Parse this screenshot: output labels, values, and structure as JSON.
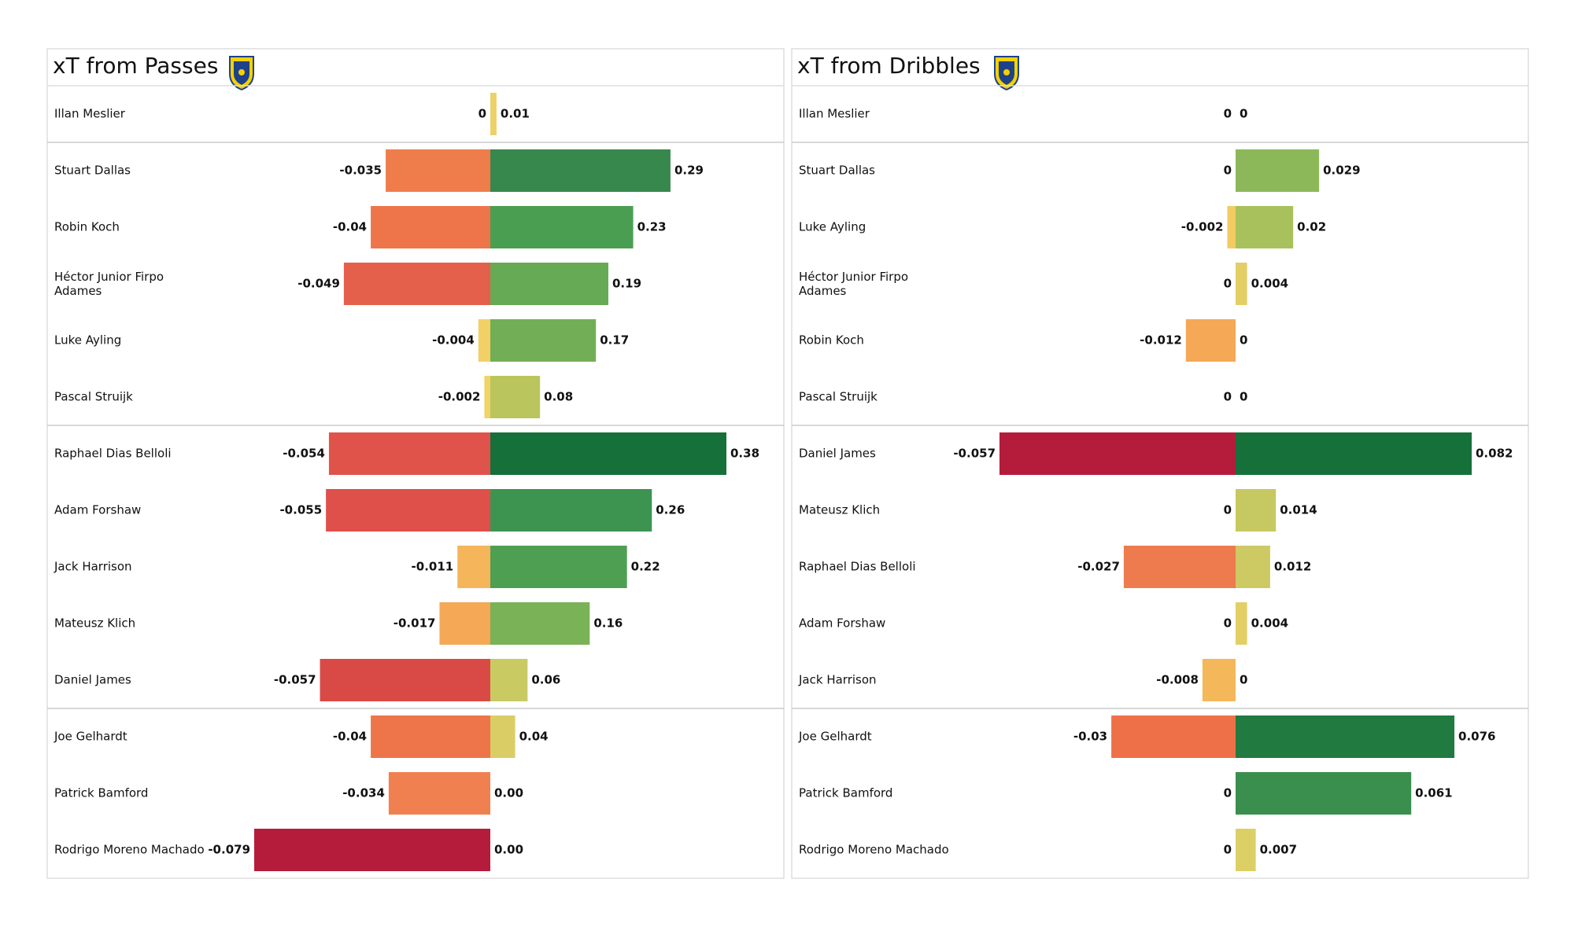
{
  "chart_data": [
    {
      "type": "diverging-bar",
      "title": "xT from Passes",
      "categories": [
        "Illan Meslier",
        "Stuart Dallas",
        "Robin Koch",
        "Héctor Junior Firpo Adames",
        "Luke Ayling",
        "Pascal Struijk",
        "Raphael Dias Belloli",
        "Adam Forshaw",
        "Jack Harrison",
        "Mateusz Klich",
        "Daniel James",
        "Joe Gelhardt",
        "Patrick Bamford",
        "Rodrigo Moreno Machado"
      ],
      "series": [
        {
          "values": [
            0,
            -0.035,
            -0.04,
            -0.049,
            -0.004,
            -0.002,
            -0.054,
            -0.055,
            -0.011,
            -0.017,
            -0.057,
            -0.04,
            -0.034,
            -0.079
          ],
          "xlim": [
            -0.079,
            0
          ],
          "colors": [
            "#e9d068",
            "#ef7d4b",
            "#ee754a",
            "#e5604a",
            "#f2d065",
            "#f0d468",
            "#e0534a",
            "#de5049",
            "#f5b55a",
            "#f5a855",
            "#d94a47",
            "#ee754a",
            "#f08050",
            "#b51c3c"
          ]
        },
        {
          "values": [
            0.01,
            0.29,
            0.23,
            0.19,
            0.17,
            0.08,
            0.38,
            0.26,
            0.22,
            0.16,
            0.06,
            0.04,
            0,
            0
          ],
          "value_labels": [
            "0.01",
            "0.29",
            "0.23",
            "0.19",
            "0.17",
            "0.08",
            "0.38",
            "0.26",
            "0.22",
            "0.16",
            "0.06",
            "0.04",
            "0.00",
            "0.00"
          ],
          "xlim": [
            0,
            0.38
          ],
          "colors": [
            "#ecd266",
            "#37884c",
            "#4a9e52",
            "#66aa56",
            "#72ae55",
            "#bac55e",
            "#16703a",
            "#3d9450",
            "#4f9f52",
            "#7ab257",
            "#c9ca62",
            "#dbcd65",
            "#e9d068",
            "#e9d068"
          ]
        }
      ]
    },
    {
      "type": "diverging-bar",
      "title": "xT from Dribbles",
      "categories": [
        "Illan Meslier",
        "Stuart Dallas",
        "Luke Ayling",
        "Héctor Junior Firpo Adames",
        "Robin Koch",
        "Pascal Struijk",
        "Daniel James",
        "Mateusz Klich",
        "Raphael Dias Belloli",
        "Adam Forshaw",
        "Jack Harrison",
        "Joe Gelhardt",
        "Patrick Bamford",
        "Rodrigo Moreno Machado"
      ],
      "series": [
        {
          "values": [
            0,
            0,
            -0.002,
            0,
            -0.012,
            0,
            -0.057,
            0,
            -0.027,
            0,
            -0.008,
            -0.03,
            0,
            0
          ],
          "xlim": [
            -0.057,
            0
          ],
          "colors": [
            "#e9d068",
            "#e9d068",
            "#f2cc62",
            "#e9d068",
            "#f5a855",
            "#e9d068",
            "#b51c3c",
            "#e9d068",
            "#ee7b4d",
            "#e9d068",
            "#f4b85a",
            "#ee7049",
            "#e9d068",
            "#e9d068"
          ]
        },
        {
          "values": [
            0,
            0.029,
            0.02,
            0.004,
            0,
            0,
            0.082,
            0.014,
            0.012,
            0.004,
            0,
            0.076,
            0.061,
            0.007
          ],
          "xlim": [
            0,
            0.082
          ],
          "colors": [
            "#e9d068",
            "#8cb85a",
            "#a9c15c",
            "#e3cf66",
            "#e9d068",
            "#e9d068",
            "#16703a",
            "#c6c862",
            "#cdc963",
            "#e3cf66",
            "#e9d068",
            "#217a40",
            "#3a8f4e",
            "#dccf66"
          ]
        }
      ]
    }
  ]
}
